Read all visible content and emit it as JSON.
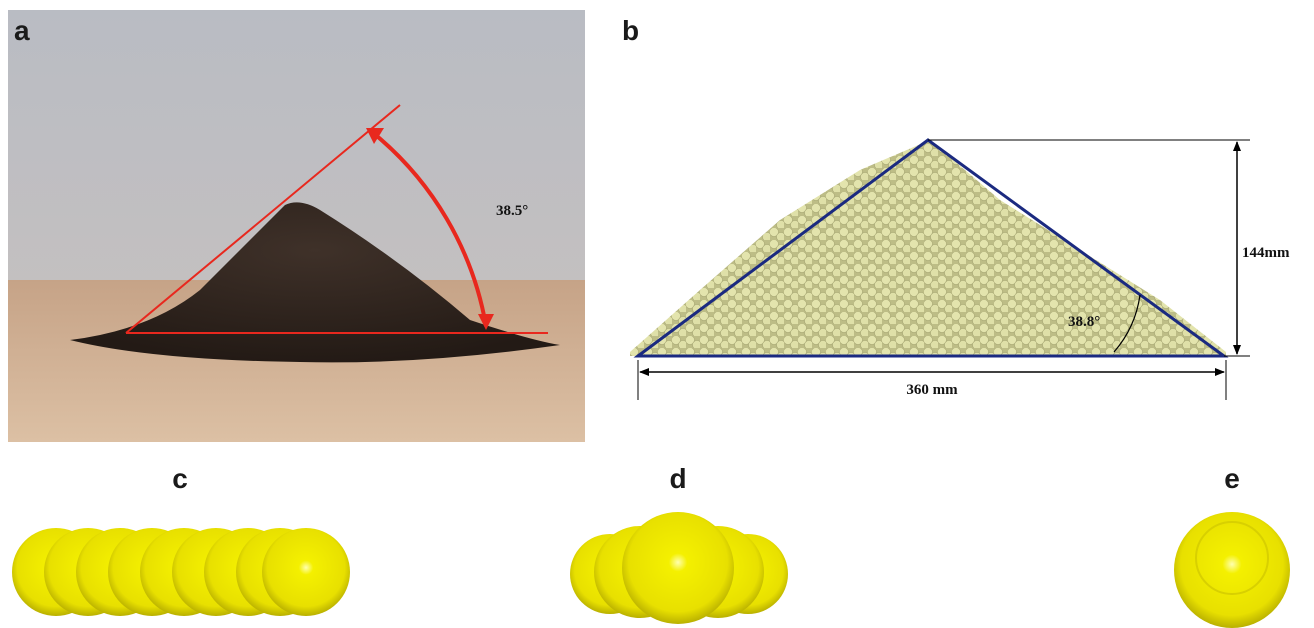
{
  "panels": [
    {
      "label": "a",
      "annotation": "38.5°"
    },
    {
      "label": "b",
      "annotations": [
        "144mm",
        "38.8°",
        "360 mm"
      ]
    },
    {
      "label": "c"
    },
    {
      "label": "d"
    },
    {
      "label": "e"
    }
  ]
}
